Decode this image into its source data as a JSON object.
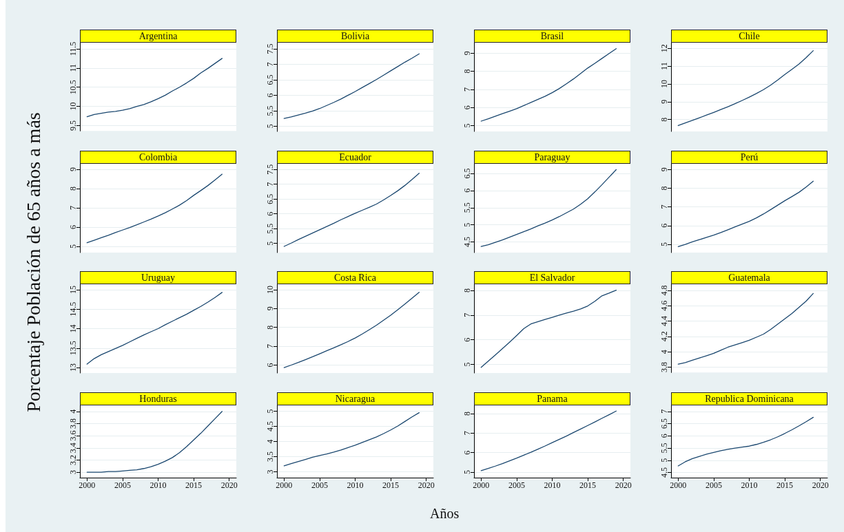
{
  "chart_data": [
    {
      "type": "line",
      "title": "Argentina",
      "x": [
        2000,
        2001,
        2002,
        2003,
        2004,
        2005,
        2006,
        2007,
        2008,
        2009,
        2010,
        2011,
        2012,
        2013,
        2014,
        2015,
        2016,
        2017,
        2018,
        2019
      ],
      "values": [
        9.73,
        9.79,
        9.82,
        9.85,
        9.87,
        9.9,
        9.94,
        10.0,
        10.05,
        10.12,
        10.2,
        10.29,
        10.4,
        10.5,
        10.61,
        10.73,
        10.87,
        10.99,
        11.12,
        11.25
      ],
      "color": "#1a476f",
      "xlim": [
        1999,
        2021
      ],
      "xticks": [
        2000,
        2005,
        2010,
        2015,
        2020
      ],
      "ylim": [
        9.36,
        11.66
      ],
      "yticks": [
        9.5,
        10,
        10.5,
        11,
        11.5
      ],
      "grid": "y",
      "tick_labels": "y"
    },
    {
      "type": "line",
      "title": "Bolivia",
      "x": [
        2000,
        2001,
        2002,
        2003,
        2004,
        2005,
        2006,
        2007,
        2008,
        2009,
        2010,
        2011,
        2012,
        2013,
        2014,
        2015,
        2016,
        2017,
        2018,
        2019
      ],
      "values": [
        5.25,
        5.3,
        5.36,
        5.42,
        5.49,
        5.57,
        5.67,
        5.77,
        5.88,
        6.0,
        6.12,
        6.25,
        6.38,
        6.51,
        6.65,
        6.79,
        6.93,
        7.07,
        7.2,
        7.34
      ],
      "color": "#1a476f",
      "xlim": [
        1999,
        2021
      ],
      "xticks": [
        2000,
        2005,
        2010,
        2015,
        2020
      ],
      "ylim": [
        4.83,
        7.7
      ],
      "yticks": [
        5,
        5.5,
        6,
        6.5,
        7,
        7.5
      ],
      "grid": "y",
      "tick_labels": "y"
    },
    {
      "type": "line",
      "title": "Brasil",
      "x": [
        2000,
        2001,
        2002,
        2003,
        2004,
        2005,
        2006,
        2007,
        2008,
        2009,
        2010,
        2011,
        2012,
        2013,
        2014,
        2015,
        2016,
        2017,
        2018,
        2019
      ],
      "values": [
        5.25,
        5.38,
        5.52,
        5.66,
        5.8,
        5.94,
        6.11,
        6.28,
        6.45,
        6.62,
        6.82,
        7.05,
        7.31,
        7.58,
        7.88,
        8.18,
        8.44,
        8.71,
        8.98,
        9.25
      ],
      "color": "#1a476f",
      "xlim": [
        1999,
        2021
      ],
      "xticks": [
        2000,
        2005,
        2010,
        2015,
        2020
      ],
      "ylim": [
        4.68,
        9.58
      ],
      "yticks": [
        5,
        6,
        7,
        8,
        9
      ],
      "grid": "y",
      "tick_labels": "y"
    },
    {
      "type": "line",
      "title": "Chile",
      "x": [
        2000,
        2001,
        2002,
        2003,
        2004,
        2005,
        2006,
        2007,
        2008,
        2009,
        2010,
        2011,
        2012,
        2013,
        2014,
        2015,
        2016,
        2017,
        2018,
        2019
      ],
      "values": [
        7.66,
        7.81,
        7.95,
        8.1,
        8.25,
        8.4,
        8.56,
        8.72,
        8.89,
        9.07,
        9.26,
        9.46,
        9.68,
        9.93,
        10.22,
        10.53,
        10.82,
        11.12,
        11.48,
        11.87
      ],
      "color": "#1a476f",
      "xlim": [
        1999,
        2021
      ],
      "xticks": [
        2000,
        2005,
        2010,
        2015,
        2020
      ],
      "ylim": [
        7.33,
        12.32
      ],
      "yticks": [
        8,
        9,
        10,
        11,
        12
      ],
      "grid": "y",
      "tick_labels": "y"
    },
    {
      "type": "line",
      "title": "Colombia",
      "ylabel": "Porcentaje Población de 65 años a más",
      "x": [
        2000,
        2001,
        2002,
        2003,
        2004,
        2005,
        2006,
        2007,
        2008,
        2009,
        2010,
        2011,
        2012,
        2013,
        2014,
        2015,
        2016,
        2017,
        2018,
        2019
      ],
      "values": [
        5.19,
        5.32,
        5.45,
        5.58,
        5.72,
        5.85,
        5.98,
        6.12,
        6.27,
        6.42,
        6.58,
        6.75,
        6.94,
        7.14,
        7.38,
        7.65,
        7.9,
        8.16,
        8.45,
        8.75
      ],
      "color": "#1a476f",
      "xlim": [
        1999,
        2021
      ],
      "xticks": [
        2000,
        2005,
        2010,
        2015,
        2020
      ],
      "ylim": [
        4.68,
        9.29
      ],
      "yticks": [
        5,
        6,
        7,
        8,
        9
      ],
      "grid": "y",
      "tick_labels": "y"
    },
    {
      "type": "line",
      "title": "Ecuador",
      "x": [
        2000,
        2001,
        2002,
        2003,
        2004,
        2005,
        2006,
        2007,
        2008,
        2009,
        2010,
        2011,
        2012,
        2013,
        2014,
        2015,
        2016,
        2017,
        2018,
        2019
      ],
      "values": [
        4.9,
        5.01,
        5.13,
        5.24,
        5.35,
        5.46,
        5.57,
        5.68,
        5.8,
        5.91,
        6.02,
        6.12,
        6.22,
        6.33,
        6.47,
        6.62,
        6.78,
        6.96,
        7.16,
        7.37
      ],
      "color": "#1a476f",
      "xlim": [
        1999,
        2021
      ],
      "xticks": [
        2000,
        2005,
        2010,
        2015,
        2020
      ],
      "ylim": [
        4.69,
        7.69
      ],
      "yticks": [
        5,
        5.5,
        6,
        6.5,
        7,
        7.5
      ],
      "grid": "y",
      "tick_labels": "y"
    },
    {
      "type": "line",
      "title": "Paraguay",
      "x": [
        2000,
        2001,
        2002,
        2003,
        2004,
        2005,
        2006,
        2007,
        2008,
        2009,
        2010,
        2011,
        2012,
        2013,
        2014,
        2015,
        2016,
        2017,
        2018,
        2019
      ],
      "values": [
        4.37,
        4.42,
        4.49,
        4.56,
        4.64,
        4.72,
        4.8,
        4.88,
        4.97,
        5.05,
        5.14,
        5.24,
        5.35,
        5.46,
        5.6,
        5.76,
        5.96,
        6.17,
        6.39,
        6.61
      ],
      "color": "#1a476f",
      "xlim": [
        1999,
        2021
      ],
      "xticks": [
        2000,
        2005,
        2010,
        2015,
        2020
      ],
      "ylim": [
        4.19,
        6.78
      ],
      "yticks": [
        4.5,
        5,
        5.5,
        6,
        6.5
      ],
      "grid": "y",
      "tick_labels": "y"
    },
    {
      "type": "line",
      "title": "Perú",
      "x": [
        2000,
        2001,
        2002,
        2003,
        2004,
        2005,
        2006,
        2007,
        2008,
        2009,
        2010,
        2011,
        2012,
        2013,
        2014,
        2015,
        2016,
        2017,
        2018,
        2019
      ],
      "values": [
        4.88,
        5.0,
        5.13,
        5.25,
        5.37,
        5.49,
        5.63,
        5.78,
        5.93,
        6.08,
        6.23,
        6.41,
        6.62,
        6.85,
        7.09,
        7.33,
        7.55,
        7.78,
        8.06,
        8.37
      ],
      "color": "#1a476f",
      "xlim": [
        1999,
        2021
      ],
      "xticks": [
        2000,
        2005,
        2010,
        2015,
        2020
      ],
      "ylim": [
        4.56,
        9.3
      ],
      "yticks": [
        5,
        6,
        7,
        8,
        9
      ],
      "grid": "y",
      "tick_labels": "y"
    },
    {
      "type": "line",
      "title": "Uruguay",
      "x": [
        2000,
        2001,
        2002,
        2003,
        2004,
        2005,
        2006,
        2007,
        2008,
        2009,
        2010,
        2011,
        2012,
        2013,
        2014,
        2015,
        2016,
        2017,
        2018,
        2019
      ],
      "values": [
        13.09,
        13.23,
        13.33,
        13.41,
        13.49,
        13.57,
        13.66,
        13.75,
        13.84,
        13.92,
        14.0,
        14.1,
        14.19,
        14.28,
        14.37,
        14.47,
        14.57,
        14.68,
        14.8,
        14.93
      ],
      "color": "#1a476f",
      "xlim": [
        1999,
        2021
      ],
      "xticks": [
        2000,
        2005,
        2010,
        2015,
        2020
      ],
      "ylim": [
        12.86,
        15.14
      ],
      "yticks": [
        13,
        13.5,
        14,
        14.5,
        15
      ],
      "grid": "y",
      "tick_labels": "y"
    },
    {
      "type": "line",
      "title": "Costa Rica",
      "x": [
        2000,
        2001,
        2002,
        2003,
        2004,
        2005,
        2006,
        2007,
        2008,
        2009,
        2010,
        2011,
        2012,
        2013,
        2014,
        2015,
        2016,
        2017,
        2018,
        2019
      ],
      "values": [
        5.87,
        6.0,
        6.14,
        6.29,
        6.44,
        6.6,
        6.76,
        6.92,
        7.08,
        7.25,
        7.44,
        7.65,
        7.88,
        8.12,
        8.38,
        8.65,
        8.94,
        9.24,
        9.55,
        9.86
      ],
      "color": "#1a476f",
      "xlim": [
        1999,
        2021
      ],
      "xticks": [
        2000,
        2005,
        2010,
        2015,
        2020
      ],
      "ylim": [
        5.58,
        10.29
      ],
      "yticks": [
        6,
        7,
        8,
        9,
        10
      ],
      "grid": "y",
      "tick_labels": "y"
    },
    {
      "type": "line",
      "title": "El Salvador",
      "x": [
        2000,
        2001,
        2002,
        2003,
        2004,
        2005,
        2006,
        2007,
        2008,
        2009,
        2010,
        2011,
        2012,
        2013,
        2014,
        2015,
        2016,
        2017,
        2018,
        2019
      ],
      "values": [
        4.88,
        5.13,
        5.38,
        5.64,
        5.9,
        6.17,
        6.45,
        6.64,
        6.73,
        6.82,
        6.91,
        7.0,
        7.08,
        7.16,
        7.25,
        7.37,
        7.56,
        7.78,
        7.89,
        8.01
      ],
      "color": "#1a476f",
      "xlim": [
        1999,
        2021
      ],
      "xticks": [
        2000,
        2005,
        2010,
        2015,
        2020
      ],
      "ylim": [
        4.65,
        8.25
      ],
      "yticks": [
        5,
        6,
        7,
        8
      ],
      "grid": "y",
      "tick_labels": "y"
    },
    {
      "type": "line",
      "title": "Guatemala",
      "x": [
        2000,
        2001,
        2002,
        2003,
        2004,
        2005,
        2006,
        2007,
        2008,
        2009,
        2010,
        2011,
        2012,
        2013,
        2014,
        2015,
        2016,
        2017,
        2018,
        2019
      ],
      "values": [
        3.84,
        3.86,
        3.89,
        3.92,
        3.95,
        3.98,
        4.02,
        4.06,
        4.09,
        4.12,
        4.15,
        4.19,
        4.23,
        4.29,
        4.36,
        4.43,
        4.5,
        4.58,
        4.66,
        4.76
      ],
      "color": "#1a476f",
      "xlim": [
        1999,
        2021
      ],
      "xticks": [
        2000,
        2005,
        2010,
        2015,
        2020
      ],
      "ylim": [
        3.73,
        4.88
      ],
      "yticks": [
        3.8,
        4,
        4.2,
        4.4,
        4.6,
        4.8
      ],
      "grid": "y",
      "tick_labels": "y"
    },
    {
      "type": "line",
      "title": "Honduras",
      "x": [
        2000,
        2001,
        2002,
        2003,
        2004,
        2005,
        2006,
        2007,
        2008,
        2009,
        2010,
        2011,
        2012,
        2013,
        2014,
        2015,
        2016,
        2017,
        2018,
        2019
      ],
      "values": [
        3.0,
        3.0,
        3.0,
        3.01,
        3.01,
        3.02,
        3.03,
        3.04,
        3.06,
        3.09,
        3.13,
        3.18,
        3.24,
        3.32,
        3.42,
        3.53,
        3.64,
        3.76,
        3.88,
        4.0
      ],
      "color": "#1a476f",
      "xlim": [
        1999,
        2021
      ],
      "xticks": [
        2000,
        2005,
        2010,
        2015,
        2020
      ],
      "ylim": [
        2.91,
        4.1
      ],
      "yticks": [
        3,
        3.2,
        3.4,
        3.6,
        3.8,
        4
      ],
      "grid": "y"
    },
    {
      "type": "line",
      "title": "Nicaragua",
      "xlabel": "Años",
      "x": [
        2000,
        2001,
        2002,
        2003,
        2004,
        2005,
        2006,
        2007,
        2008,
        2009,
        2010,
        2011,
        2012,
        2013,
        2014,
        2015,
        2016,
        2017,
        2018,
        2019
      ],
      "values": [
        3.2,
        3.27,
        3.34,
        3.41,
        3.48,
        3.54,
        3.59,
        3.65,
        3.72,
        3.8,
        3.88,
        3.97,
        4.06,
        4.15,
        4.26,
        4.38,
        4.51,
        4.66,
        4.81,
        4.95
      ],
      "color": "#1a476f",
      "xlim": [
        1999,
        2021
      ],
      "xticks": [
        2000,
        2005,
        2010,
        2015,
        2020
      ],
      "ylim": [
        2.81,
        5.19
      ],
      "yticks": [
        3,
        3.5,
        4,
        4.5,
        5
      ],
      "grid": "y"
    },
    {
      "type": "line",
      "title": "Panama",
      "x": [
        2000,
        2001,
        2002,
        2003,
        2004,
        2005,
        2006,
        2007,
        2008,
        2009,
        2010,
        2011,
        2012,
        2013,
        2014,
        2015,
        2016,
        2017,
        2018,
        2019
      ],
      "values": [
        5.08,
        5.19,
        5.31,
        5.44,
        5.58,
        5.72,
        5.87,
        6.02,
        6.18,
        6.34,
        6.51,
        6.68,
        6.85,
        7.03,
        7.21,
        7.39,
        7.57,
        7.76,
        7.94,
        8.13
      ],
      "color": "#1a476f",
      "xlim": [
        1999,
        2021
      ],
      "xticks": [
        2000,
        2005,
        2010,
        2015,
        2020
      ],
      "ylim": [
        4.72,
        8.42
      ],
      "yticks": [
        5,
        6,
        7,
        8
      ],
      "grid": "y"
    },
    {
      "type": "line",
      "title": "Republica Dominicana",
      "x": [
        2000,
        2001,
        2002,
        2003,
        2004,
        2005,
        2006,
        2007,
        2008,
        2009,
        2010,
        2011,
        2012,
        2013,
        2014,
        2015,
        2016,
        2017,
        2018,
        2019
      ],
      "values": [
        4.77,
        4.94,
        5.07,
        5.16,
        5.25,
        5.32,
        5.39,
        5.45,
        5.5,
        5.54,
        5.58,
        5.65,
        5.74,
        5.84,
        5.96,
        6.1,
        6.25,
        6.41,
        6.58,
        6.76
      ],
      "color": "#1a476f",
      "xlim": [
        1999,
        2021
      ],
      "xticks": [
        2000,
        2005,
        2010,
        2015,
        2020
      ],
      "ylim": [
        4.29,
        7.25
      ],
      "yticks": [
        4.5,
        5,
        5.5,
        6,
        6.5,
        7
      ],
      "grid": "y"
    }
  ]
}
